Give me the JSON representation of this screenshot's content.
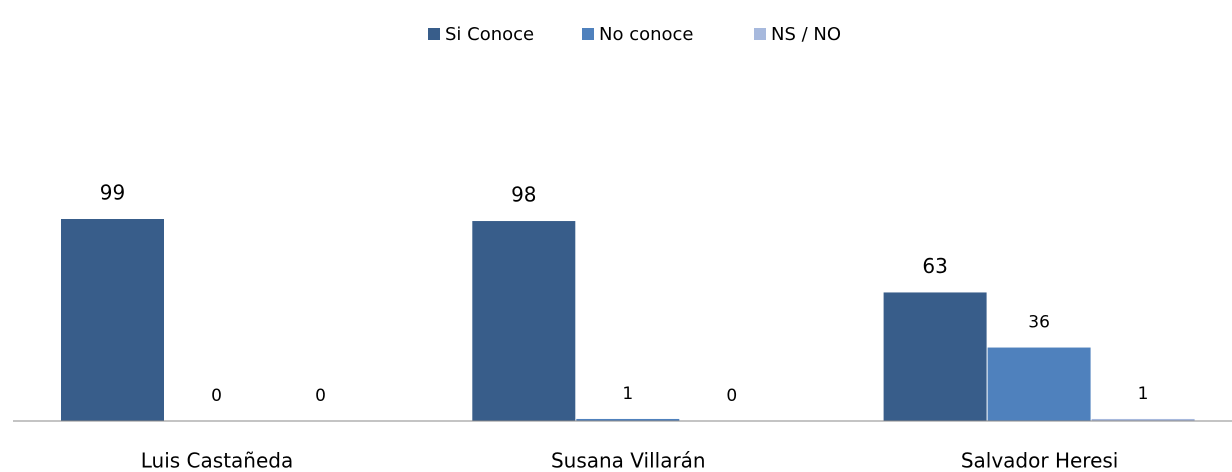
{
  "chart_data": {
    "type": "bar",
    "categories": [
      "Luis Castañeda",
      "Susana Villarán",
      "Salvador Heresi"
    ],
    "series": [
      {
        "name": "Si Conoce",
        "color": "#385d8a",
        "values": [
          99,
          98,
          63
        ]
      },
      {
        "name": "No conoce",
        "color": "#4f81bd",
        "values": [
          0,
          1,
          36
        ]
      },
      {
        "name": "NS / NO",
        "color": "#a7b9dd",
        "values": [
          0,
          0,
          1
        ]
      }
    ],
    "legend": "top"
  }
}
